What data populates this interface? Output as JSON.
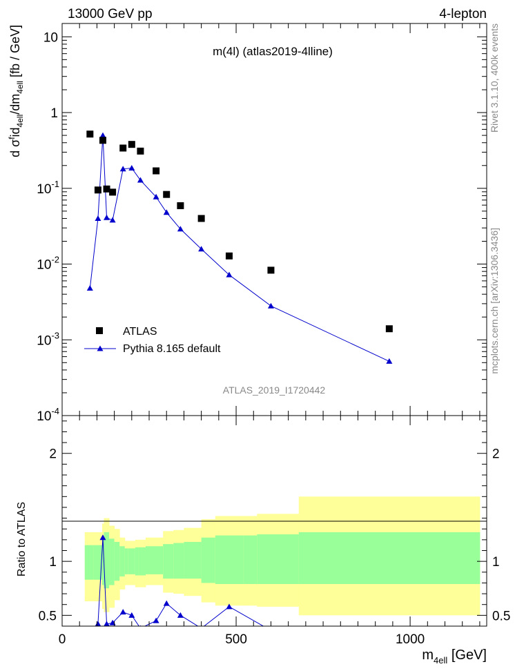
{
  "header": {
    "left": "13000 GeV pp",
    "right": "4-lepton"
  },
  "plot_title": "m(4l) (atlas2019-4lline)",
  "watermark": "ATLAS_2019_I1720442",
  "side_labels": {
    "top": "Rivet 3.1.10,  400k events",
    "bottom": "mcplots.cern.ch [arXiv:1306.3436]"
  },
  "axis": {
    "ylabel_upper": "d σ^{f}id_{4ell}/dm_{4ell} [fb / GeV]",
    "ylabel_lower": "Ratio to ATLAS",
    "xlabel": "m_{4ell} [GeV]",
    "x_ticks": [
      "0",
      "500",
      "1000"
    ],
    "y_ticks_upper": [
      "10^{-4}",
      "10^{-3}",
      "10^{-2}",
      "10^{-1}",
      "1",
      "10"
    ],
    "y_ticks_lower": [
      "0.5",
      "1",
      "2"
    ]
  },
  "colors": {
    "atlas": "#000000",
    "pythia": "#0000cc",
    "band_inner": "#99ff99",
    "band_outer": "#ffff99"
  },
  "chart_data": [
    {
      "type": "scatter",
      "panel": "main",
      "xlabel": "m_4ell [GeV]",
      "ylabel": "d σ^f id_4ell/dm_4ell [fb / GeV]",
      "yscale": "log",
      "xlim": [
        0,
        1220
      ],
      "ylim": [
        0.0001,
        15
      ],
      "legend": "bottom-left",
      "series": [
        {
          "name": "ATLAS",
          "marker": "square",
          "x": [
            80,
            103,
            117,
            128,
            145,
            175,
            200,
            225,
            270,
            300,
            340,
            400,
            480,
            600,
            940
          ],
          "y": [
            0.52,
            0.095,
            0.43,
            0.098,
            0.089,
            0.34,
            0.38,
            0.31,
            0.17,
            0.083,
            0.059,
            0.04,
            0.0128,
            0.0083,
            0.0014
          ]
        },
        {
          "name": "Pythia 8.165 default",
          "marker": "triangle",
          "x": [
            80,
            103,
            117,
            128,
            145,
            175,
            200,
            225,
            270,
            300,
            340,
            400,
            480,
            600,
            940
          ],
          "y": [
            0.0048,
            0.04,
            0.5,
            0.041,
            0.038,
            0.18,
            0.185,
            0.128,
            0.077,
            0.048,
            0.029,
            0.0158,
            0.0072,
            0.0028,
            0.00052
          ]
        }
      ]
    },
    {
      "type": "line",
      "panel": "ratio",
      "ylabel": "Ratio to ATLAS",
      "xlim": [
        0,
        1220
      ],
      "ylim": [
        0.4,
        2.35
      ],
      "bands": {
        "edges": [
          65,
          90,
          115,
          120,
          135,
          150,
          165,
          180,
          190,
          210,
          220,
          240,
          290,
          320,
          350,
          400,
          440,
          520,
          560,
          680,
          1200
        ],
        "inner_lo": [
          0.83,
          0.83,
          0.78,
          0.75,
          0.78,
          0.82,
          0.86,
          0.88,
          0.88,
          0.87,
          0.87,
          0.88,
          0.84,
          0.84,
          0.84,
          0.8,
          0.79,
          0.79,
          0.79,
          0.79
        ],
        "inner_hi": [
          1.15,
          1.15,
          1.22,
          1.27,
          1.21,
          1.18,
          1.14,
          1.12,
          1.12,
          1.13,
          1.13,
          1.14,
          1.16,
          1.17,
          1.18,
          1.22,
          1.24,
          1.24,
          1.25,
          1.27
        ],
        "outer_lo": [
          0.63,
          0.63,
          0.56,
          0.53,
          0.57,
          0.64,
          0.74,
          0.78,
          0.78,
          0.76,
          0.76,
          0.78,
          0.71,
          0.7,
          0.68,
          0.62,
          0.59,
          0.59,
          0.58,
          0.5
        ],
        "outer_hi": [
          1.27,
          1.27,
          1.35,
          1.4,
          1.33,
          1.3,
          1.22,
          1.19,
          1.19,
          1.2,
          1.2,
          1.22,
          1.28,
          1.29,
          1.31,
          1.39,
          1.42,
          1.42,
          1.44,
          1.6
        ]
      },
      "series": [
        {
          "name": "Pythia 8.165 default",
          "x": [
            103,
            117,
            128,
            145,
            175,
            200,
            225,
            270,
            300,
            340,
            400,
            480,
            600
          ],
          "y": [
            0.42,
            1.22,
            0.42,
            0.43,
            0.53,
            0.5,
            0.38,
            0.45,
            0.61,
            0.5,
            0.38,
            0.58,
            0.36
          ]
        }
      ]
    }
  ]
}
